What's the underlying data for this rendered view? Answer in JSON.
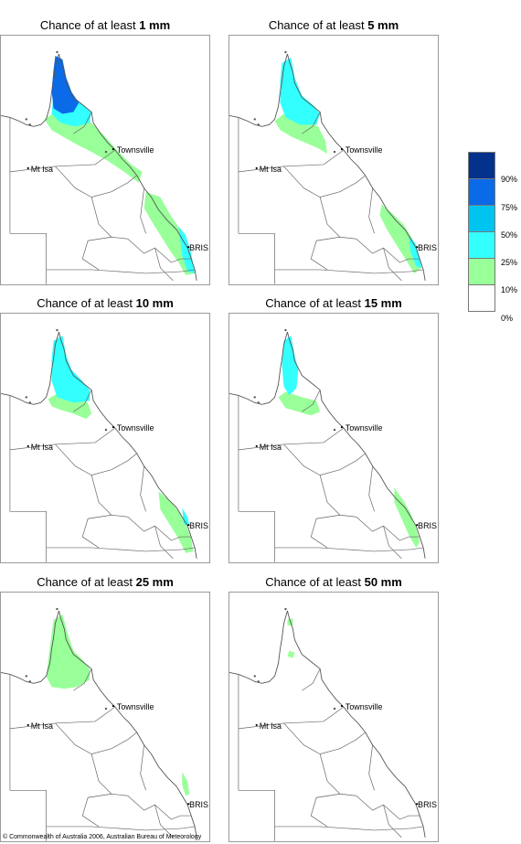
{
  "panels": [
    {
      "prefix": "Chance of at least ",
      "amount": "1 mm"
    },
    {
      "prefix": "Chance of at least ",
      "amount": "5 mm"
    },
    {
      "prefix": "Chance of at least ",
      "amount": "10 mm"
    },
    {
      "prefix": "Chance of at least ",
      "amount": "15 mm"
    },
    {
      "prefix": "Chance of at least ",
      "amount": "25 mm"
    },
    {
      "prefix": "Chance of at least ",
      "amount": "50 mm"
    }
  ],
  "places": {
    "townsville": "Townsville",
    "mt_isa": "Mt Isa",
    "brisbane": "BRIS"
  },
  "legend": {
    "labels": [
      "90%",
      "75%",
      "50%",
      "25%",
      "10%",
      "0%"
    ],
    "colors": [
      "#03318c",
      "#0a6ae8",
      "#00c4f0",
      "#33ffff",
      "#99ff99",
      "#ffffff"
    ]
  },
  "copyright": "© Commonwealth of Australia 2006, Australian Bureau of Meteorology"
}
